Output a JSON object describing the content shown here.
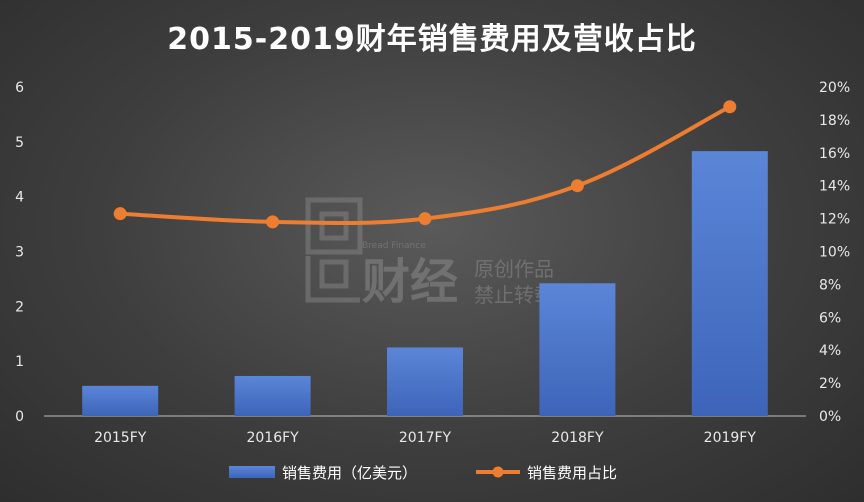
{
  "chart_data": {
    "type": "bar",
    "title": "2015-2019财年销售费用及营收占比",
    "categories": [
      "2015FY",
      "2016FY",
      "2017FY",
      "2018FY",
      "2019FY"
    ],
    "series": [
      {
        "name": "销售费用（亿美元）",
        "type": "bar",
        "axis": "left",
        "values": [
          0.55,
          0.73,
          1.25,
          2.42,
          4.83
        ]
      },
      {
        "name": "销售费用占比",
        "type": "line",
        "axis": "right",
        "values": [
          12.3,
          11.8,
          12.0,
          14.0,
          18.8
        ]
      }
    ],
    "y_left": {
      "ylim": [
        0,
        6
      ],
      "ticks": [
        "0",
        "1",
        "2",
        "3",
        "4",
        "5",
        "6"
      ]
    },
    "y_right": {
      "ylim": [
        0,
        20
      ],
      "ticks": [
        "0%",
        "2%",
        "4%",
        "6%",
        "8%",
        "10%",
        "12%",
        "14%",
        "16%",
        "18%",
        "20%"
      ]
    },
    "grid": false,
    "legend": "bottom",
    "colors": {
      "bar": "#4a74c9",
      "line": "#ed7d31"
    }
  },
  "watermark": {
    "brand_en": "Bread Finance",
    "brand_cn": "财经",
    "line1": "原创作品",
    "line2": "禁止转载"
  }
}
